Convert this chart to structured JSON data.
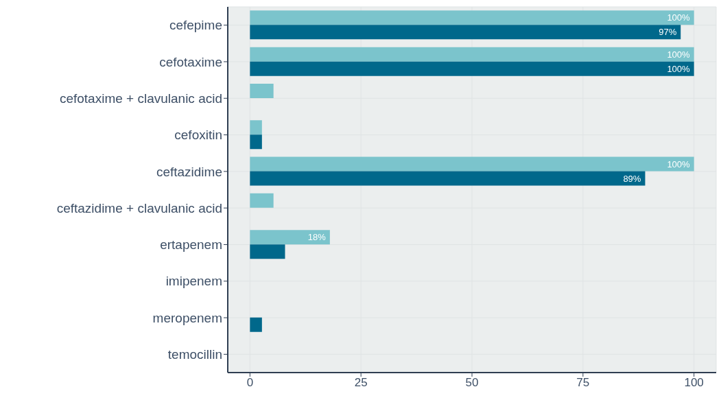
{
  "chart_data": {
    "type": "bar",
    "orientation": "horizontal",
    "categories": [
      "cefepime",
      "cefotaxime",
      "cefotaxime + clavulanic acid",
      "cefoxitin",
      "ceftazidime",
      "ceftazidime + clavulanic acid",
      "ertapenem",
      "imipenem",
      "meropenem",
      "temocillin"
    ],
    "series": [
      {
        "color": "#7bc4cc",
        "values": [
          100,
          100,
          5.3,
          2.7,
          100,
          5.3,
          18,
          null,
          null,
          null
        ],
        "value_labels": [
          "100%",
          "100%",
          null,
          null,
          "100%",
          null,
          "18%",
          null,
          null,
          null
        ]
      },
      {
        "color": "#00688b",
        "values": [
          97,
          100,
          null,
          2.7,
          89,
          null,
          7.9,
          null,
          2.7,
          null
        ],
        "value_labels": [
          "97%",
          "100%",
          null,
          null,
          "89%",
          null,
          null,
          null,
          null,
          null
        ]
      }
    ],
    "xlim": [
      -5,
      105
    ],
    "xticks": [
      0,
      25,
      50,
      75,
      100
    ],
    "grid": true
  }
}
